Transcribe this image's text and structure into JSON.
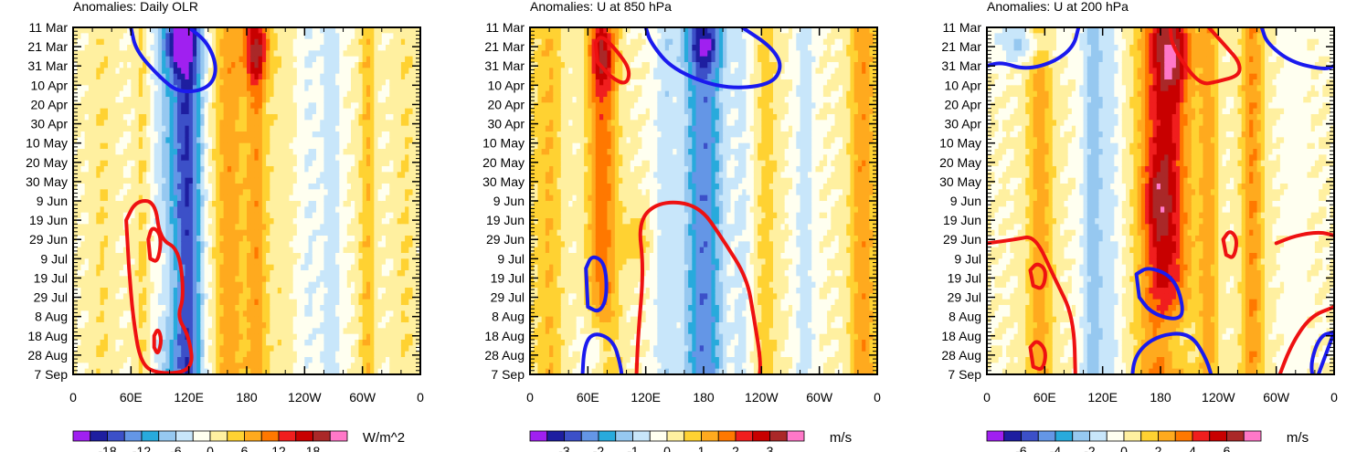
{
  "figure": {
    "bands": [
      "#a020f0",
      "#1e1ea0",
      "#3c50c8",
      "#6496e6",
      "#28aadc",
      "#96c8f0",
      "#c8e6fa",
      "#fffff0",
      "#fff0a0",
      "#ffd232",
      "#ffaa1e",
      "#ff7800",
      "#f01e1e",
      "#c80000",
      "#aa2828",
      "#ff78c8"
    ],
    "contour_colors": {
      "positive": "#ee1111",
      "negative": "#1a1aee"
    },
    "months": [
      "Mar",
      "Apr",
      "May",
      "Jun",
      "Jul",
      "Aug",
      "Sep"
    ]
  },
  "chart_data": [
    {
      "type": "heatmap",
      "title": "Anomalies: Daily OLR",
      "units": "W/m^2",
      "x_ticks": [
        "0",
        "60E",
        "120E",
        "180",
        "120W",
        "60W",
        "0"
      ],
      "y_ticks": [
        "11 Mar",
        "21 Mar",
        "31 Mar",
        "10 Apr",
        "20 Apr",
        "30 Apr",
        "10 May",
        "20 May",
        "30 May",
        "9 Jun",
        "19 Jun",
        "29 Jun",
        "9 Jul",
        "19 Jul",
        "29 Jul",
        "8 Aug",
        "18 Aug",
        "28 Aug",
        "7 Sep"
      ],
      "colorbar_labels": [
        "-18",
        "-12",
        "-6",
        "0",
        "6",
        "12",
        "18"
      ],
      "colorbar_step": 3,
      "xlim": [
        0,
        360
      ],
      "features": [
        {
          "lon": 30,
          "width": 12,
          "value": 3
        },
        {
          "lon": 72,
          "width": 8,
          "value": 4
        },
        {
          "lon": 105,
          "width": 22,
          "value": -8
        },
        {
          "lon": 120,
          "width": 14,
          "value": -13
        },
        {
          "lon": 162,
          "width": 16,
          "value": 8
        },
        {
          "lon": 190,
          "width": 11,
          "value": 8
        },
        {
          "lon": 215,
          "width": 14,
          "value": 2
        },
        {
          "lon": 245,
          "width": 12,
          "value": -3
        },
        {
          "lon": 268,
          "width": 10,
          "value": -5
        },
        {
          "lon": 305,
          "width": 8,
          "value": 6
        },
        {
          "lon": 345,
          "width": 12,
          "value": 3
        }
      ],
      "blobs": [
        {
          "lon": 190,
          "day": 12,
          "rx": 14,
          "ry": 18,
          "value": 12
        },
        {
          "lon": 110,
          "day": 10,
          "rx": 18,
          "ry": 14,
          "value": -12
        },
        {
          "lon": 100,
          "day": 130,
          "rx": 18,
          "ry": 30,
          "value": 4
        }
      ],
      "contours": [
        {
          "sign": "negative",
          "points": [
            [
              60,
              0
            ],
            [
              65,
              12
            ],
            [
              90,
              26
            ],
            [
              110,
              34
            ],
            [
              140,
              32
            ],
            [
              150,
              22
            ],
            [
              140,
              8
            ],
            [
              120,
              0
            ]
          ]
        },
        {
          "sign": "positive",
          "points": [
            [
              55,
              100
            ],
            [
              65,
              90
            ],
            [
              85,
              90
            ],
            [
              90,
              110
            ],
            [
              110,
              115
            ],
            [
              115,
              140
            ],
            [
              108,
              150
            ],
            [
              120,
              160
            ],
            [
              125,
              178
            ],
            [
              90,
              180
            ],
            [
              70,
              175
            ],
            [
              62,
              150
            ],
            [
              58,
              125
            ]
          ]
        },
        {
          "sign": "positive",
          "points": [
            [
              78,
              110
            ],
            [
              82,
              103
            ],
            [
              92,
              108
            ],
            [
              88,
              122
            ],
            [
              80,
              120
            ]
          ]
        },
        {
          "sign": "positive",
          "points": [
            [
              84,
              160
            ],
            [
              88,
              156
            ],
            [
              92,
              162
            ],
            [
              88,
              170
            ],
            [
              84,
              166
            ]
          ]
        }
      ]
    },
    {
      "type": "heatmap",
      "title": "Anomalies: U at 850 hPa",
      "units": "m/s",
      "x_ticks": [
        "0",
        "60E",
        "120E",
        "180",
        "120W",
        "60W",
        "0"
      ],
      "y_ticks": [
        "11 Mar",
        "21 Mar",
        "31 Mar",
        "10 Apr",
        "20 Apr",
        "30 Apr",
        "10 May",
        "20 May",
        "30 May",
        "9 Jun",
        "19 Jun",
        "29 Jun",
        "9 Jul",
        "19 Jul",
        "29 Jul",
        "8 Aug",
        "18 Aug",
        "28 Aug",
        "7 Sep"
      ],
      "colorbar_labels": [
        "-3",
        "-2",
        "-1",
        "0",
        "1",
        "2",
        "3"
      ],
      "colorbar_step": 0.5,
      "xlim": [
        0,
        360
      ],
      "features": [
        {
          "lon": 20,
          "width": 14,
          "value": 1
        },
        {
          "lon": 75,
          "width": 16,
          "value": 1.8
        },
        {
          "lon": 140,
          "width": 12,
          "value": -0.8
        },
        {
          "lon": 180,
          "width": 20,
          "value": -2.4
        },
        {
          "lon": 220,
          "width": 10,
          "value": -0.6
        },
        {
          "lon": 245,
          "width": 12,
          "value": 0.7
        },
        {
          "lon": 285,
          "width": 10,
          "value": -0.8
        },
        {
          "lon": 345,
          "width": 14,
          "value": 1.4
        }
      ],
      "blobs": [
        {
          "lon": 75,
          "day": 15,
          "rx": 12,
          "ry": 18,
          "value": 1.5
        },
        {
          "lon": 180,
          "day": 10,
          "rx": 22,
          "ry": 12,
          "value": -1.4
        },
        {
          "lon": 70,
          "day": 170,
          "rx": 14,
          "ry": 20,
          "value": -1.8
        },
        {
          "lon": 110,
          "day": 110,
          "rx": 14,
          "ry": 14,
          "value": 1
        }
      ],
      "contours": [
        {
          "sign": "positive",
          "points": [
            [
              68,
              8
            ],
            [
              74,
              4
            ],
            [
              90,
              12
            ],
            [
              104,
              22
            ],
            [
              100,
              30
            ],
            [
              84,
              26
            ],
            [
              70,
              18
            ]
          ]
        },
        {
          "sign": "negative",
          "points": [
            [
              120,
              0
            ],
            [
              125,
              8
            ],
            [
              148,
              22
            ],
            [
              200,
              32
            ],
            [
              250,
              30
            ],
            [
              262,
              20
            ],
            [
              250,
              10
            ],
            [
              220,
              0
            ]
          ]
        },
        {
          "sign": "positive",
          "points": [
            [
              110,
              185
            ],
            [
              112,
              160
            ],
            [
              118,
              125
            ],
            [
              112,
              100
            ],
            [
              135,
              90
            ],
            [
              175,
              92
            ],
            [
              200,
              110
            ],
            [
              225,
              130
            ],
            [
              232,
              150
            ],
            [
              240,
              175
            ],
            [
              236,
              185
            ]
          ]
        },
        {
          "sign": "negative",
          "points": [
            [
              58,
              125
            ],
            [
              64,
              118
            ],
            [
              78,
              122
            ],
            [
              80,
              140
            ],
            [
              72,
              148
            ],
            [
              60,
              145
            ]
          ]
        },
        {
          "sign": "negative",
          "points": [
            [
              54,
              185
            ],
            [
              56,
              165
            ],
            [
              66,
              158
            ],
            [
              86,
              162
            ],
            [
              94,
              175
            ],
            [
              96,
              185
            ]
          ]
        }
      ]
    },
    {
      "type": "heatmap",
      "title": "Anomalies: U at 200 hPa",
      "units": "m/s",
      "x_ticks": [
        "0",
        "60E",
        "120E",
        "180",
        "120W",
        "60W",
        "0"
      ],
      "y_ticks": [
        "11 Mar",
        "21 Mar",
        "31 Mar",
        "10 Apr",
        "20 Apr",
        "30 Apr",
        "10 May",
        "20 May",
        "30 May",
        "9 Jun",
        "19 Jun",
        "29 Jun",
        "9 Jul",
        "19 Jul",
        "29 Jul",
        "8 Aug",
        "18 Aug",
        "28 Aug",
        "7 Sep"
      ],
      "colorbar_labels": [
        "-6",
        "-4",
        "-2",
        "0",
        "2",
        "4",
        "6"
      ],
      "colorbar_step": 1,
      "xlim": [
        0,
        360
      ],
      "features": [
        {
          "lon": 55,
          "width": 14,
          "value": 2.5
        },
        {
          "lon": 110,
          "width": 12,
          "value": -2.5
        },
        {
          "lon": 130,
          "width": 10,
          "value": -1.2
        },
        {
          "lon": 185,
          "width": 26,
          "value": 5.5
        },
        {
          "lon": 230,
          "width": 10,
          "value": 2.4
        },
        {
          "lon": 275,
          "width": 12,
          "value": 3
        },
        {
          "lon": 320,
          "width": 12,
          "value": -0.6
        }
      ],
      "blobs": [
        {
          "lon": 195,
          "day": 15,
          "rx": 18,
          "ry": 18,
          "value": 2.5
        },
        {
          "lon": 175,
          "day": 90,
          "rx": 14,
          "ry": 20,
          "value": 2
        },
        {
          "lon": 190,
          "day": 165,
          "rx": 20,
          "ry": 22,
          "value": -3.5
        },
        {
          "lon": 40,
          "day": 8,
          "rx": 30,
          "ry": 10,
          "value": -2.5
        }
      ],
      "contours": [
        {
          "sign": "negative",
          "points": [
            [
              0,
              20
            ],
            [
              15,
              18
            ],
            [
              40,
              22
            ],
            [
              70,
              18
            ],
            [
              90,
              10
            ],
            [
              95,
              0
            ]
          ]
        },
        {
          "sign": "positive",
          "points": [
            [
              190,
              0
            ],
            [
              192,
              10
            ],
            [
              220,
              30
            ],
            [
              240,
              28
            ],
            [
              262,
              25
            ],
            [
              262,
              18
            ],
            [
              248,
              10
            ],
            [
              230,
              0
            ]
          ]
        },
        {
          "sign": "negative",
          "points": [
            [
              285,
              0
            ],
            [
              290,
              8
            ],
            [
              315,
              18
            ],
            [
              350,
              22
            ],
            [
              360,
              20
            ]
          ]
        },
        {
          "sign": "positive",
          "points": [
            [
              0,
              112
            ],
            [
              30,
              110
            ],
            [
              50,
              108
            ],
            [
              70,
              130
            ],
            [
              90,
              150
            ],
            [
              92,
              185
            ]
          ]
        },
        {
          "sign": "positive",
          "points": [
            [
              45,
              126
            ],
            [
              52,
              122
            ],
            [
              62,
              126
            ],
            [
              58,
              136
            ],
            [
              48,
              134
            ]
          ]
        },
        {
          "sign": "positive",
          "points": [
            [
              45,
              166
            ],
            [
              52,
              162
            ],
            [
              62,
              168
            ],
            [
              58,
              178
            ],
            [
              48,
              176
            ]
          ]
        },
        {
          "sign": "negative",
          "points": [
            [
              155,
              128
            ],
            [
              168,
              124
            ],
            [
              195,
              130
            ],
            [
              205,
              148
            ],
            [
              195,
              152
            ],
            [
              170,
              148
            ],
            [
              158,
              140
            ]
          ]
        },
        {
          "sign": "negative",
          "points": [
            [
              150,
              185
            ],
            [
              153,
              170
            ],
            [
              175,
              160
            ],
            [
              210,
              158
            ],
            [
              228,
              172
            ],
            [
              235,
              185
            ]
          ]
        },
        {
          "sign": "positive",
          "points": [
            [
              245,
              110
            ],
            [
              252,
              105
            ],
            [
              260,
              110
            ],
            [
              256,
              120
            ],
            [
              248,
              118
            ]
          ]
        },
        {
          "sign": "positive",
          "points": [
            [
              300,
              185
            ],
            [
              315,
              165
            ],
            [
              335,
              150
            ],
            [
              360,
              145
            ]
          ]
        },
        {
          "sign": "positive",
          "points": [
            [
              300,
              112
            ],
            [
              320,
              108
            ],
            [
              345,
              106
            ],
            [
              360,
              108
            ]
          ]
        },
        {
          "sign": "negative",
          "points": [
            [
              340,
              185
            ],
            [
              335,
              175
            ],
            [
              345,
              160
            ],
            [
              360,
              158
            ]
          ]
        }
      ]
    }
  ]
}
